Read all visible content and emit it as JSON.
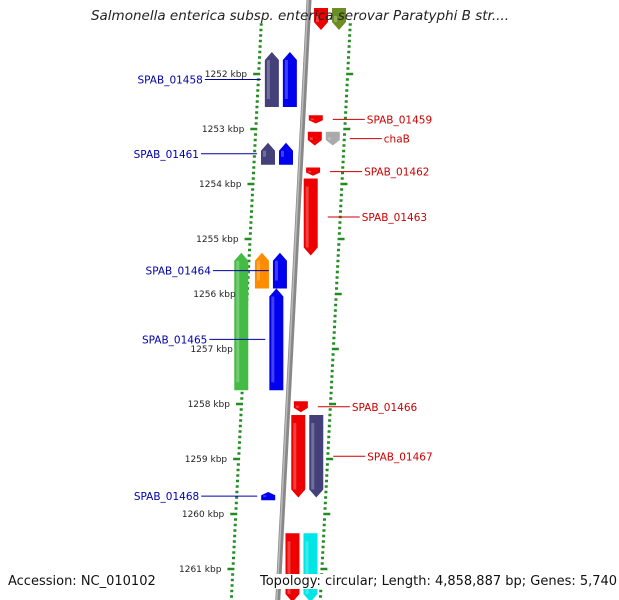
{
  "title": "Salmonella enterica subsp. enterica serovar Paratyphi B str....",
  "accession_label": "Accession: NC_010102",
  "topology_label": "Topology: circular; Length: 4,858,887 bp; Genes: 5,740",
  "colors": {
    "backbone": "#888888",
    "tick": "#228b22",
    "left_label": "#0000aa",
    "right_label": "#cc0000",
    "gene_blue": "#0000ee",
    "gene_navy": "#43407a",
    "gene_red": "#ee0000",
    "gene_olive": "#6b8e23",
    "gene_green": "#44bb44",
    "gene_orange": "#ff8c00",
    "gene_cyan": "#00e5e5",
    "gene_gray": "#aaaaaa"
  },
  "scale_labels": [
    {
      "kbp": 1252,
      "text": "1252 kbp"
    },
    {
      "kbp": 1253,
      "text": "1253 kbp"
    },
    {
      "kbp": 1254,
      "text": "1254 kbp"
    },
    {
      "kbp": 1255,
      "text": "1255 kbp"
    },
    {
      "kbp": 1256,
      "text": "1256 kbp"
    },
    {
      "kbp": 1257,
      "text": "1257 kbp"
    },
    {
      "kbp": 1258,
      "text": "1258 kbp"
    },
    {
      "kbp": 1259,
      "text": "1259 kbp"
    },
    {
      "kbp": 1260,
      "text": "1260 kbp"
    },
    {
      "kbp": 1261,
      "text": "1261 kbp"
    }
  ],
  "genes_left": [
    {
      "name": "SPAB_01458",
      "start": 1251.6,
      "end": 1252.6,
      "color": "navy",
      "lane": 1
    },
    {
      "name": "SPAB_01458-b",
      "start": 1251.6,
      "end": 1252.6,
      "color": "blue",
      "lane": 0,
      "unlabeled": true
    },
    {
      "name": "SPAB_01461",
      "start": 1253.25,
      "end": 1253.65,
      "color": "navy",
      "lane": 1
    },
    {
      "name": "SPAB_01461-b",
      "start": 1253.25,
      "end": 1253.65,
      "color": "blue",
      "lane": 0,
      "unlabeled": true
    },
    {
      "name": "SPAB_01464",
      "start": 1255.25,
      "end": 1255.9,
      "color": "blue",
      "lane": 0
    },
    {
      "name": "SPAB_01464-o",
      "start": 1255.25,
      "end": 1255.9,
      "color": "orange",
      "lane": 1,
      "unlabeled": true
    },
    {
      "name": "SPAB_01465",
      "start": 1255.9,
      "end": 1257.75,
      "color": "blue",
      "lane": 0
    },
    {
      "name": "SPAB_01465-g",
      "start": 1255.25,
      "end": 1257.75,
      "color": "green",
      "lane": 2,
      "unlabeled": true
    },
    {
      "name": "SPAB_01468",
      "start": 1259.6,
      "end": 1259.75,
      "color": "blue",
      "lane": 0
    }
  ],
  "genes_right": [
    {
      "name": "SPAB_01459",
      "start": 1252.75,
      "end": 1252.9,
      "color": "red",
      "lane": 0
    },
    {
      "name": "chaB",
      "start": 1253.05,
      "end": 1253.3,
      "color": "gray",
      "lane": 1
    },
    {
      "name": "chaB-r",
      "start": 1253.05,
      "end": 1253.3,
      "color": "red",
      "lane": 0,
      "unlabeled": true
    },
    {
      "name": "SPAB_01462",
      "start": 1253.7,
      "end": 1253.85,
      "color": "red",
      "lane": 0
    },
    {
      "name": "SPAB_01463",
      "start": 1253.9,
      "end": 1255.3,
      "color": "red",
      "lane": 0
    },
    {
      "name": "SPAB_01466",
      "start": 1257.95,
      "end": 1258.15,
      "color": "red",
      "lane": 0
    },
    {
      "name": "SPAB_01467",
      "start": 1258.2,
      "end": 1259.7,
      "color": "navy",
      "lane": 1
    },
    {
      "name": "SPAB_01467-r",
      "start": 1258.2,
      "end": 1259.7,
      "color": "red",
      "lane": 0,
      "unlabeled": true
    },
    {
      "name": "SPAB_01469",
      "start": 1260.35,
      "end": 1261.6,
      "color": "red",
      "lane": 0,
      "unlabeled": true
    },
    {
      "name": "SPAB_01470",
      "start": 1260.35,
      "end": 1261.6,
      "color": "cyan",
      "lane": 1,
      "unlabeled": true
    },
    {
      "name": "SPAB_01457",
      "start": 1250.8,
      "end": 1251.2,
      "color": "red",
      "lane": 0,
      "unlabeled": true
    },
    {
      "name": "SPAB_01457-o",
      "start": 1250.8,
      "end": 1251.2,
      "color": "olive",
      "lane": 1,
      "unlabeled": true
    }
  ]
}
